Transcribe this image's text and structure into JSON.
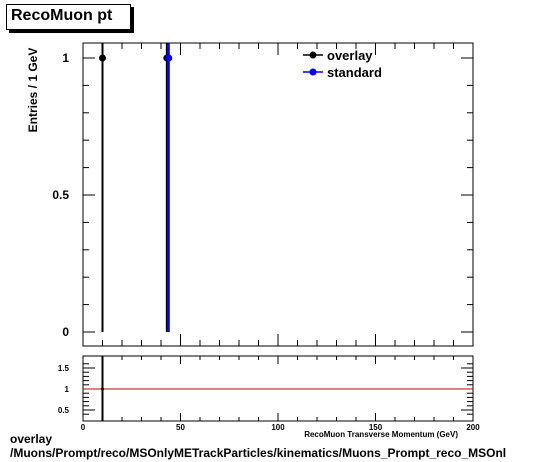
{
  "title": "RecoMuon pt",
  "caption": {
    "line1": "overlay",
    "line2": "/Muons/Prompt/reco/MSOnlyMETrackParticles/kinematics/Muons_Prompt_reco_MSOnl"
  },
  "colors": {
    "overlay": "#000000",
    "standard": "#0000ff",
    "ratio_line": "#cc0000"
  },
  "chart_data": [
    {
      "type": "bar",
      "ylabel": "Entries / 1 GeV",
      "xlim": [
        0,
        200
      ],
      "ylim": [
        0,
        1.05
      ],
      "yticks": [
        0,
        0.5,
        1
      ],
      "ytick_labels": [
        "0",
        "0.5",
        "1"
      ],
      "legend_position": "top-right",
      "series": [
        {
          "name": "overlay",
          "marker": "filled-circle",
          "points": [
            {
              "x": 10,
              "y": 1
            },
            {
              "x": 43,
              "y": 1
            }
          ]
        },
        {
          "name": "standard",
          "marker": "filled-circle",
          "points": [
            {
              "x": 44,
              "y": 1
            }
          ]
        }
      ]
    },
    {
      "type": "line",
      "xlabel": "RecoMuon Transverse Momentum (GeV)",
      "xlim": [
        0,
        200
      ],
      "ylim": [
        0.35,
        1.7
      ],
      "xticks": [
        0,
        50,
        100,
        150,
        200
      ],
      "xtick_labels": [
        "0",
        "50",
        "100",
        "150",
        "200"
      ],
      "yticks": [
        0.5,
        1,
        1.5
      ],
      "ytick_labels": [
        "0.5",
        "1",
        "1.5"
      ],
      "reference_line": 1,
      "ratio_points": [
        {
          "x": 10,
          "y": 1
        }
      ]
    }
  ]
}
